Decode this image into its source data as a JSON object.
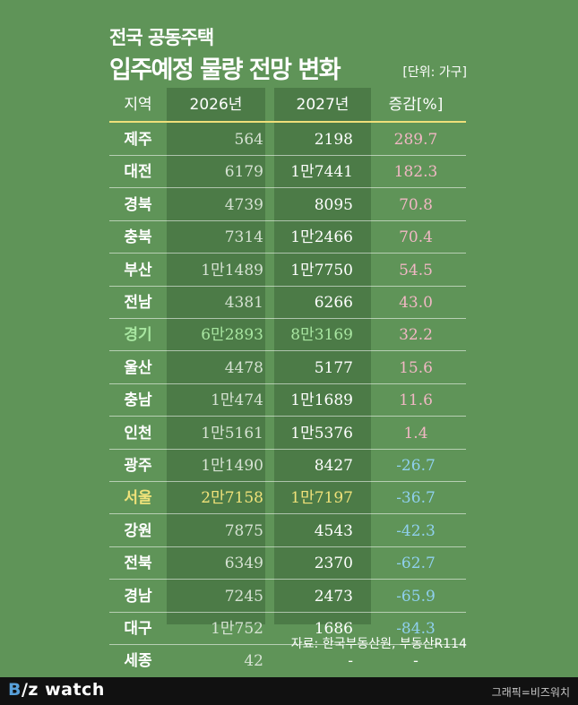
{
  "title": {
    "line1": "전국 공동주택",
    "line2": "입주예정 물량 전망 변화",
    "unit": "[단위: 가구]"
  },
  "source": "자료: 한국부동산원, 부동산R114",
  "footer": {
    "logo_b": "B",
    "logo_rest": "/z watch",
    "credit": "그래픽=비즈워치"
  },
  "chart_data": {
    "type": "table",
    "columns": [
      "지역",
      "2026년",
      "2027년",
      "증감[%]"
    ],
    "rows": [
      {
        "region": "제주",
        "y2026": "564",
        "y2027": "2198",
        "change": "289.7"
      },
      {
        "region": "대전",
        "y2026": "6179",
        "y2027": "1만7441",
        "change": "182.3"
      },
      {
        "region": "경북",
        "y2026": "4739",
        "y2027": "8095",
        "change": "70.8"
      },
      {
        "region": "충북",
        "y2026": "7314",
        "y2027": "1만2466",
        "change": "70.4"
      },
      {
        "region": "부산",
        "y2026": "1만1489",
        "y2027": "1만7750",
        "change": "54.5"
      },
      {
        "region": "전남",
        "y2026": "4381",
        "y2027": "6266",
        "change": "43.0"
      },
      {
        "region": "경기",
        "y2026": "6만2893",
        "y2027": "8만3169",
        "change": "32.2",
        "highlight": "green"
      },
      {
        "region": "울산",
        "y2026": "4478",
        "y2027": "5177",
        "change": "15.6"
      },
      {
        "region": "충남",
        "y2026": "1만474",
        "y2027": "1만1689",
        "change": "11.6"
      },
      {
        "region": "인천",
        "y2026": "1만5161",
        "y2027": "1만5376",
        "change": "1.4"
      },
      {
        "region": "광주",
        "y2026": "1만1490",
        "y2027": "8427",
        "change": "-26.7"
      },
      {
        "region": "서울",
        "y2026": "2만7158",
        "y2027": "1만7197",
        "change": "-36.7",
        "highlight": "yellow"
      },
      {
        "region": "강원",
        "y2026": "7875",
        "y2027": "4543",
        "change": "-42.3"
      },
      {
        "region": "전북",
        "y2026": "6349",
        "y2027": "2370",
        "change": "-62.7"
      },
      {
        "region": "경남",
        "y2026": "7245",
        "y2027": "2473",
        "change": "-65.9"
      },
      {
        "region": "대구",
        "y2026": "1만752",
        "y2027": "1686",
        "change": "-84.3"
      },
      {
        "region": "세종",
        "y2026": "42",
        "y2027": "-",
        "change": "-"
      }
    ],
    "colors": {
      "background": "#5f9458",
      "column_band": "#4c7b47",
      "positive": "#f1b7c4",
      "negative": "#8fd0ee",
      "highlight_green": "#a8e6a1",
      "highlight_yellow": "#f0e27a"
    }
  }
}
